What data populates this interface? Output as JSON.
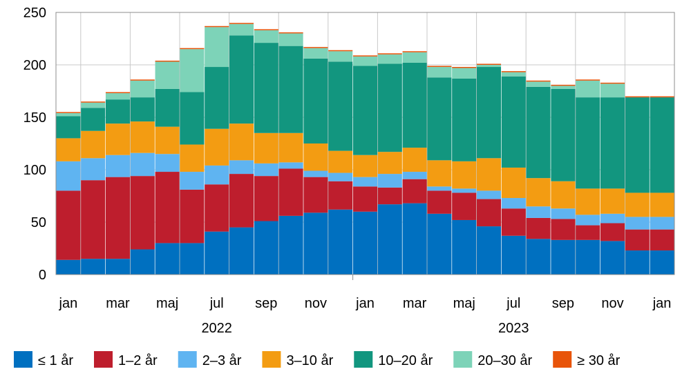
{
  "chart_data": {
    "type": "bar",
    "stacked": true,
    "categories": [
      "jan",
      "feb",
      "mar",
      "apr",
      "maj",
      "jun",
      "jul",
      "aug",
      "sep",
      "okt",
      "nov",
      "dec",
      "jan",
      "feb",
      "mar",
      "apr",
      "maj",
      "jun",
      "jul",
      "aug",
      "sep",
      "okt",
      "nov",
      "dec",
      "jan"
    ],
    "x_tick_labels": [
      {
        "index": 0,
        "label": "jan"
      },
      {
        "index": 2,
        "label": "mar"
      },
      {
        "index": 4,
        "label": "maj"
      },
      {
        "index": 6,
        "label": "jul"
      },
      {
        "index": 8,
        "label": "sep"
      },
      {
        "index": 10,
        "label": "nov"
      },
      {
        "index": 12,
        "label": "jan"
      },
      {
        "index": 14,
        "label": "mar"
      },
      {
        "index": 16,
        "label": "maj"
      },
      {
        "index": 18,
        "label": "jul"
      },
      {
        "index": 20,
        "label": "sep"
      },
      {
        "index": 22,
        "label": "nov"
      },
      {
        "index": 24,
        "label": "jan"
      }
    ],
    "year_labels": [
      {
        "label": "2022",
        "center_index": 6
      },
      {
        "label": "2023",
        "center_index": 18
      }
    ],
    "year_separators": [
      12
    ],
    "ylim": [
      0,
      250
    ],
    "yticks": [
      0,
      50,
      100,
      150,
      200,
      250
    ],
    "grid": true,
    "legend_position": "bottom",
    "series": [
      {
        "name": "≤ 1 år",
        "color": "#0070C0",
        "values": [
          14,
          15,
          15,
          24,
          30,
          30,
          41,
          45,
          51,
          56,
          59,
          62,
          60,
          67,
          68,
          58,
          52,
          46,
          37,
          34,
          33,
          33,
          32,
          23,
          23
        ]
      },
      {
        "name": "1–2 år",
        "color": "#BE1E2D",
        "values": [
          66,
          75,
          78,
          70,
          68,
          51,
          45,
          51,
          43,
          45,
          34,
          27,
          24,
          16,
          23,
          22,
          26,
          26,
          26,
          20,
          20,
          14,
          17,
          20,
          20
        ]
      },
      {
        "name": "2–3 år",
        "color": "#5FB4F1",
        "values": [
          28,
          21,
          21,
          22,
          17,
          17,
          18,
          13,
          12,
          6,
          6,
          8,
          9,
          13,
          7,
          4,
          4,
          8,
          10,
          11,
          10,
          10,
          9,
          12,
          12
        ]
      },
      {
        "name": "3–10 år",
        "color": "#F39C12",
        "values": [
          22,
          26,
          30,
          30,
          26,
          26,
          35,
          35,
          29,
          28,
          26,
          21,
          21,
          21,
          23,
          25,
          26,
          31,
          29,
          27,
          26,
          25,
          24,
          23,
          23
        ]
      },
      {
        "name": "10–20 år",
        "color": "#12967F",
        "values": [
          21,
          22,
          23,
          23,
          36,
          50,
          59,
          84,
          86,
          83,
          81,
          85,
          85,
          84,
          81,
          79,
          79,
          87,
          87,
          87,
          88,
          87,
          87,
          91,
          91
        ]
      },
      {
        "name": "20–30 år",
        "color": "#7DD3B8",
        "values": [
          3,
          5,
          6,
          16,
          26,
          41,
          38,
          11,
          12,
          12,
          10,
          10,
          9,
          9,
          10,
          10,
          10,
          2,
          4,
          5,
          3,
          16,
          13,
          0,
          0
        ]
      },
      {
        "name": "≥ 30 år",
        "color": "#E8540A",
        "values": [
          1,
          1,
          1,
          1,
          1,
          1,
          1,
          1,
          1,
          1,
          1,
          1,
          1,
          1,
          1,
          1,
          1,
          1,
          1,
          1,
          1,
          1,
          1,
          1,
          1
        ]
      }
    ]
  }
}
